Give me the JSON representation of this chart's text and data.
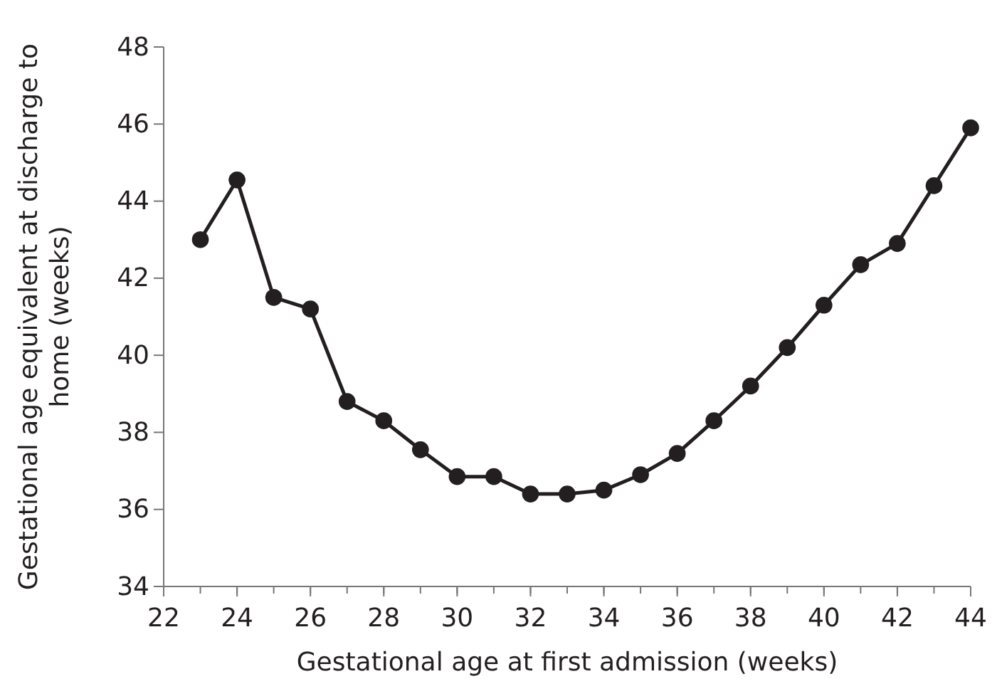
{
  "chart_data": {
    "type": "line",
    "xlabel": "Gestational age at first admission (weeks)",
    "ylabel": "Gestational age equivalent at discharge to home (weeks)",
    "x": [
      23,
      24,
      25,
      26,
      27,
      28,
      29,
      30,
      31,
      32,
      33,
      34,
      35,
      36,
      37,
      38,
      39,
      40,
      41,
      42,
      43,
      44
    ],
    "series": [
      {
        "color": "#231f20",
        "values": [
          43.0,
          44.55,
          41.5,
          41.2,
          38.8,
          38.3,
          37.55,
          36.85,
          36.85,
          36.4,
          36.4,
          36.5,
          36.9,
          37.45,
          38.3,
          39.2,
          40.2,
          41.3,
          42.35,
          42.9,
          44.4,
          45.9
        ]
      }
    ],
    "xlim": [
      22,
      44
    ],
    "xticks": [
      22,
      24,
      26,
      28,
      30,
      32,
      34,
      36,
      38,
      40,
      42,
      44
    ],
    "ylim": [
      34,
      48
    ],
    "yticks": [
      34,
      36,
      38,
      40,
      42,
      44,
      46,
      48
    ],
    "marker": "circle",
    "line_style": "solid"
  }
}
